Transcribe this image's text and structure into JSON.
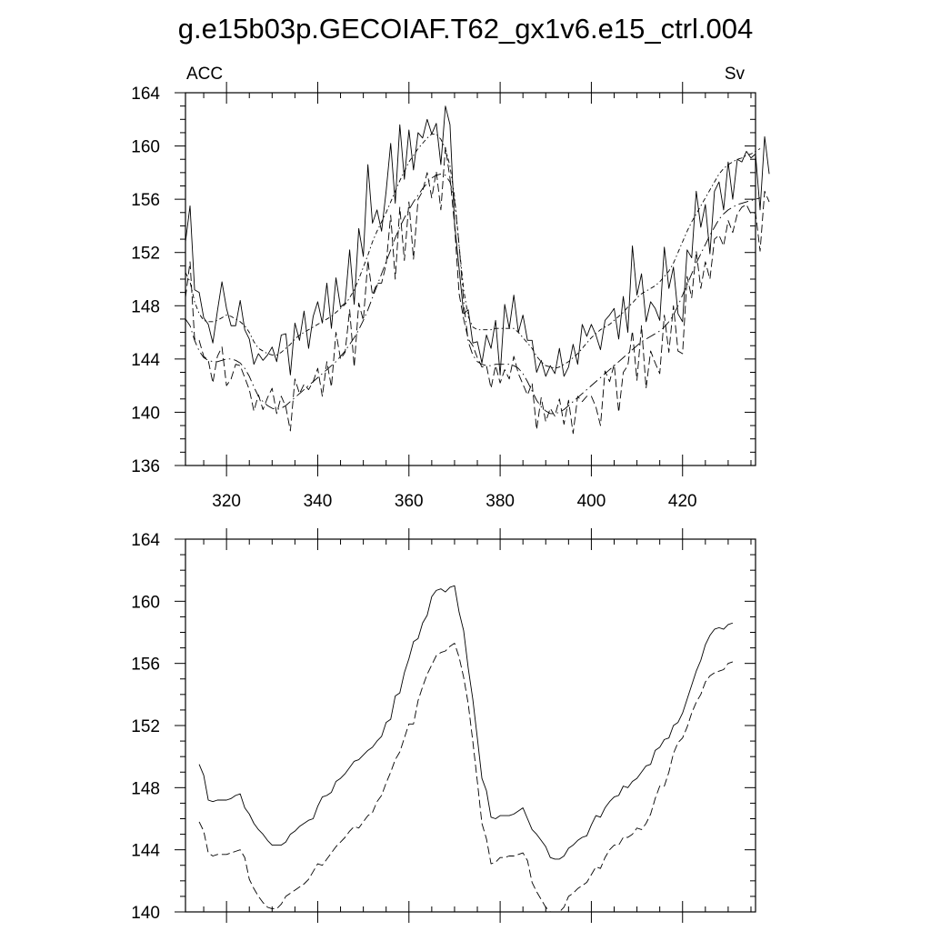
{
  "title": "g.e15b03p.GECOIAF.T62_gx1v6.e15_ctrl.004",
  "colors": {
    "ink": "#000000",
    "background": "#ffffff"
  },
  "chart_data": [
    {
      "type": "line",
      "left_label": "ACC",
      "right_label": "Sv",
      "xlim": [
        311,
        436
      ],
      "ylim": [
        136,
        164
      ],
      "xticks": [
        320,
        340,
        360,
        380,
        400,
        420
      ],
      "yticks": [
        136,
        140,
        144,
        148,
        152,
        156,
        160,
        164
      ],
      "grid": false,
      "x_start": 311,
      "x_step": 1,
      "series": [
        {
          "style": "solid",
          "values": [
            152.8,
            155.5,
            149.2,
            149.0,
            147.1,
            146.6,
            145.2,
            147.6,
            149.8,
            147.8,
            146.5,
            146.5,
            148.4,
            146.2,
            145.5,
            143.6,
            144.4,
            143.9,
            144.3,
            144.9,
            143.8,
            145.8,
            145.9,
            142.8,
            146.7,
            145.4,
            147.6,
            144.8,
            147.2,
            148.3,
            146.7,
            149.7,
            146.3,
            150.1,
            147.9,
            148.2,
            152.2,
            148.1,
            153.8,
            151.7,
            158.6,
            154.2,
            155.2,
            153.6,
            156.6,
            160.2,
            155.7,
            161.6,
            157.5,
            161.2,
            158.2,
            161.0,
            160.6,
            162.0,
            160.9,
            161.7,
            158.6,
            163.0,
            161.6,
            154.2,
            150.8,
            147.4,
            147.7,
            145.2,
            145.3,
            143.7,
            145.8,
            144.8,
            146.9,
            142.8,
            148.1,
            146.3,
            148.8,
            146.0,
            147.3,
            145.4,
            145.4,
            143.0,
            143.9,
            142.7,
            143.5,
            142.9,
            144.8,
            142.7,
            143.4,
            145.1,
            143.6,
            146.6,
            145.7,
            146.6,
            145.8,
            144.7,
            146.9,
            147.3,
            147.8,
            145.5,
            148.7,
            146.0,
            152.5,
            148.8,
            150.4,
            146.8,
            148.3,
            147.8,
            146.9,
            152.4,
            149.3,
            150.9,
            147.4,
            146.8,
            152.2,
            151.6,
            156.6,
            153.9,
            155.6,
            151.9,
            156.6,
            157.3,
            155.2,
            158.8,
            156.0,
            159.0,
            158.8,
            159.6,
            159.1,
            159.4,
            155.2,
            160.7,
            157.9
          ]
        },
        {
          "style": "dashed",
          "values": [
            148.6,
            151.3,
            145.5,
            145.4,
            144.2,
            143.9,
            142.2,
            144.2,
            144.9,
            142.0,
            142.5,
            143.6,
            143.5,
            142.6,
            141.7,
            140.1,
            141.3,
            140.2,
            141.1,
            141.8,
            139.9,
            141.2,
            140.4,
            138.6,
            142.5,
            141.4,
            142.1,
            141.7,
            142.3,
            143.3,
            141.2,
            143.8,
            141.9,
            146.0,
            144.0,
            144.5,
            147.7,
            143.4,
            148.2,
            146.9,
            151.4,
            148.8,
            149.7,
            149.7,
            151.1,
            154.8,
            150.0,
            155.4,
            151.4,
            155.8,
            151.5,
            156.0,
            156.6,
            158.0,
            156.1,
            158.1,
            155.2,
            159.9,
            157.6,
            154.1,
            148.9,
            147.0,
            145.5,
            145.0,
            144.1,
            143.4,
            143.5,
            141.8,
            143.5,
            142.2,
            143.2,
            142.5,
            144.2,
            142.9,
            142.1,
            141.3,
            142.2,
            138.7,
            141.1,
            139.3,
            140.3,
            139.7,
            141.0,
            139.1,
            140.9,
            138.4,
            141.2,
            140.8,
            141.2,
            141.2,
            140.4,
            139.0,
            143.1,
            142.3,
            143.6,
            140.0,
            143.0,
            143.5,
            146.1,
            142.4,
            146.5,
            141.8,
            144.6,
            143.7,
            142.9,
            147.3,
            144.5,
            148.0,
            144.6,
            144.4,
            150.2,
            148.6,
            152.1,
            149.3,
            151.3,
            150.0,
            153.0,
            153.3,
            152.5,
            154.4,
            153.5,
            154.9,
            155.4,
            155.6,
            154.9,
            155.0,
            152.1,
            156.6,
            155.8
          ]
        },
        {
          "style": "dash-dot",
          "values": [
            150.5,
            149.8,
            148.3,
            147.4,
            146.9,
            146.8,
            146.8,
            146.9,
            147.1,
            147.3,
            147.2,
            147.0,
            146.8,
            146.5,
            146.0,
            145.3,
            144.8,
            144.6,
            144.4,
            144.3,
            144.3,
            144.5,
            144.8,
            145.1,
            145.5,
            145.8,
            146.0,
            146.2,
            146.4,
            146.6,
            146.8,
            147.0,
            147.2,
            147.5,
            147.8,
            148.1,
            148.6,
            149.2,
            150.0,
            150.9,
            151.8,
            152.8,
            153.6,
            154.3,
            155.0,
            155.8,
            156.6,
            157.4,
            158.1,
            158.8,
            159.3,
            159.8,
            160.2,
            160.6,
            160.9,
            160.9,
            160.5,
            159.8,
            158.5,
            156.2,
            152.5,
            149.2,
            147.2,
            146.4,
            146.2,
            146.2,
            146.2,
            146.2,
            146.3,
            146.3,
            146.3,
            146.3,
            146.3,
            146.0,
            145.6,
            145.2,
            144.8,
            144.2,
            143.8,
            143.5,
            143.4,
            143.3,
            143.4,
            143.6,
            143.8,
            144.1,
            144.4,
            144.8,
            145.2,
            145.6,
            145.9,
            146.2,
            146.4,
            146.6,
            146.9,
            147.2,
            147.5,
            147.9,
            148.2,
            148.6,
            148.9,
            149.1,
            149.3,
            149.5,
            149.8,
            150.2,
            150.6,
            151.2,
            152.0,
            152.8,
            153.6,
            154.3,
            154.9,
            155.5,
            156.1,
            156.7,
            157.3,
            157.9,
            158.3,
            158.6,
            158.8,
            159.0,
            159.1,
            159.3,
            159.4,
            159.6,
            159.8
          ]
        },
        {
          "style": "long-dash-dot",
          "values": [
            147.0,
            146.5,
            145.4,
            144.6,
            144.1,
            143.9,
            143.8,
            143.8,
            143.9,
            144.0,
            144.0,
            143.9,
            143.7,
            143.3,
            142.7,
            141.9,
            141.2,
            140.8,
            140.5,
            140.3,
            140.2,
            140.3,
            140.5,
            140.8,
            141.1,
            141.4,
            141.7,
            142.0,
            142.3,
            142.6,
            142.9,
            143.2,
            143.5,
            143.8,
            144.2,
            144.6,
            145.1,
            145.6,
            146.2,
            146.9,
            147.7,
            148.6,
            149.5,
            150.4,
            151.3,
            152.2,
            153.1,
            153.9,
            154.6,
            155.2,
            155.8,
            156.3,
            156.8,
            157.2,
            157.6,
            157.8,
            157.9,
            157.8,
            157.3,
            155.9,
            152.6,
            148.3,
            145.3,
            144.3,
            143.8,
            143.6,
            143.5,
            143.5,
            143.6,
            143.6,
            143.6,
            143.6,
            143.5,
            143.3,
            142.9,
            142.3,
            141.6,
            140.9,
            140.4,
            140.1,
            139.9,
            139.9,
            140.0,
            140.2,
            140.5,
            140.8,
            141.1,
            141.4,
            141.7,
            142.0,
            142.3,
            142.6,
            142.9,
            143.2,
            143.5,
            143.8,
            144.1,
            144.4,
            144.7,
            145.0,
            145.3,
            145.5,
            145.7,
            145.9,
            146.1,
            146.4,
            146.8,
            147.3,
            148.0,
            148.8,
            149.6,
            150.4,
            151.2,
            151.9,
            152.6,
            153.3,
            153.9,
            154.5,
            154.9,
            155.2,
            155.4,
            155.6,
            155.7,
            155.8,
            155.9,
            156.0,
            156.1
          ]
        }
      ]
    },
    {
      "type": "line",
      "xlim": [
        311,
        436
      ],
      "ylim": [
        140,
        164
      ],
      "yticks": [
        140,
        144,
        148,
        152,
        156,
        160,
        164
      ],
      "grid": false,
      "x_start": 314,
      "x_step": 1,
      "series": [
        {
          "style": "solid",
          "values": [
            149.5,
            148.8,
            147.2,
            147.1,
            147.2,
            147.2,
            147.2,
            147.3,
            147.5,
            147.6,
            146.7,
            146.3,
            145.7,
            145.3,
            145.0,
            144.6,
            144.3,
            144.3,
            144.3,
            144.5,
            145.0,
            145.2,
            145.5,
            145.7,
            145.9,
            146.0,
            146.8,
            147.4,
            147.5,
            147.7,
            148.4,
            148.6,
            148.9,
            149.3,
            149.7,
            149.8,
            150.1,
            150.4,
            150.6,
            151.0,
            151.3,
            152.2,
            152.4,
            153.9,
            154.1,
            155.4,
            156.3,
            157.4,
            157.6,
            158.6,
            159.1,
            160.3,
            160.7,
            160.8,
            160.6,
            160.9,
            161.0,
            159.3,
            158.1,
            155.7,
            153.7,
            151.2,
            148.6,
            147.8,
            146.1,
            146.0,
            146.2,
            146.2,
            146.2,
            146.3,
            146.5,
            146.7,
            146.0,
            145.3,
            145.0,
            144.6,
            144.2,
            143.5,
            143.4,
            143.4,
            143.6,
            144.1,
            144.3,
            144.6,
            144.8,
            144.9,
            145.6,
            146.2,
            146.1,
            146.7,
            147.1,
            147.4,
            147.5,
            148.1,
            148.0,
            148.4,
            148.6,
            149.0,
            149.4,
            149.5,
            150.4,
            150.6,
            151.1,
            151.2,
            152.0,
            152.2,
            152.8,
            153.7,
            154.6,
            155.5,
            156.2,
            157.2,
            157.8,
            158.2,
            158.3,
            158.2,
            158.5,
            158.6
          ]
        },
        {
          "style": "dashed",
          "values": [
            145.8,
            145.2,
            143.8,
            143.6,
            143.7,
            143.7,
            143.7,
            143.8,
            143.9,
            144.0,
            143.5,
            142.1,
            141.5,
            141.0,
            140.6,
            140.3,
            140.2,
            140.2,
            140.5,
            141.0,
            141.2,
            141.4,
            141.6,
            141.8,
            142.1,
            142.6,
            143.1,
            143.0,
            143.4,
            143.8,
            144.2,
            144.5,
            144.8,
            145.2,
            145.5,
            145.4,
            145.8,
            146.2,
            146.4,
            147.1,
            147.5,
            148.3,
            149.0,
            149.8,
            150.3,
            151.2,
            152.1,
            152.1,
            153.6,
            154.5,
            155.3,
            155.9,
            156.5,
            156.7,
            156.8,
            157.1,
            157.3,
            156.4,
            155.1,
            153.4,
            151.0,
            148.4,
            145.7,
            144.7,
            143.1,
            143.2,
            143.5,
            143.5,
            143.6,
            143.6,
            143.7,
            143.8,
            143.3,
            141.9,
            141.3,
            140.8,
            140.3,
            140.0,
            140.0,
            140.0,
            140.3,
            141.0,
            141.2,
            141.5,
            141.7,
            141.9,
            142.4,
            142.9,
            142.8,
            143.5,
            144.0,
            144.3,
            144.3,
            144.8,
            144.8,
            145.0,
            145.4,
            145.3,
            145.7,
            146.3,
            147.3,
            148.1,
            148.1,
            149.0,
            150.2,
            150.9,
            151.2,
            151.9,
            152.8,
            153.5,
            154.0,
            154.8,
            155.2,
            155.4,
            155.5,
            155.6,
            156.0,
            156.1
          ]
        }
      ]
    }
  ]
}
